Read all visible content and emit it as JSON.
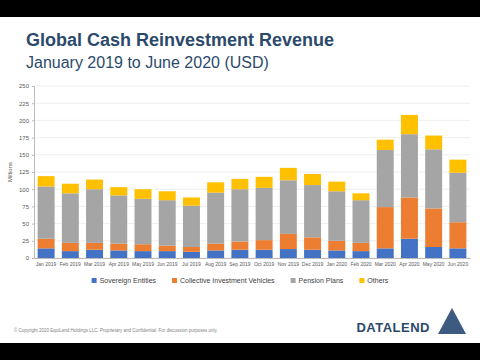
{
  "chart_data": {
    "type": "bar",
    "stacked": true,
    "title": "Global Cash Reinvestment Revenue",
    "subtitle": "January 2019 to June 2020 (USD)",
    "ylabel": "Millions",
    "categories": [
      "Jan 2019",
      "Feb 2019",
      "Mar 2019",
      "Apr 2019",
      "May 2019",
      "Jun 2019",
      "Jul 2019",
      "Aug 2019",
      "Sep 2019",
      "Oct 2019",
      "Nov 2019",
      "Dec 2019",
      "Jan 2020",
      "Feb 2020",
      "Mar 2020",
      "Apr 2020",
      "May 2020",
      "Jun 2020"
    ],
    "series": [
      {
        "name": "Sovereign Entities",
        "color": "#4472c4",
        "values": [
          14,
          10,
          12,
          11,
          10,
          10,
          9,
          11,
          12,
          12,
          13,
          12,
          11,
          10,
          14,
          28,
          16,
          14
        ]
      },
      {
        "name": "Collective Investment Vehicles",
        "color": "#ed7d31",
        "values": [
          14,
          12,
          10,
          10,
          10,
          8,
          7,
          10,
          12,
          14,
          22,
          18,
          14,
          12,
          60,
          60,
          56,
          38
        ]
      },
      {
        "name": "Pension Plans",
        "color": "#a5a5a5",
        "values": [
          76,
          72,
          78,
          70,
          66,
          66,
          60,
          74,
          76,
          76,
          78,
          76,
          72,
          62,
          83,
          92,
          86,
          72
        ]
      },
      {
        "name": "Others",
        "color": "#ffc000",
        "values": [
          15,
          14,
          14,
          12,
          14,
          13,
          12,
          15,
          15,
          16,
          18,
          16,
          14,
          10,
          15,
          28,
          20,
          19
        ]
      }
    ],
    "ylim": [
      0,
      250
    ],
    "yticks": [
      0,
      25,
      50,
      75,
      100,
      125,
      150,
      175,
      200,
      225,
      250
    ],
    "grid": true,
    "legend": "bottom"
  },
  "footer": {
    "copyright": "© Copyright 2020 EquiLend Holdings LLC. Proprietary and Confidential. For discussion purposes only.",
    "logo": "DATALEND"
  }
}
